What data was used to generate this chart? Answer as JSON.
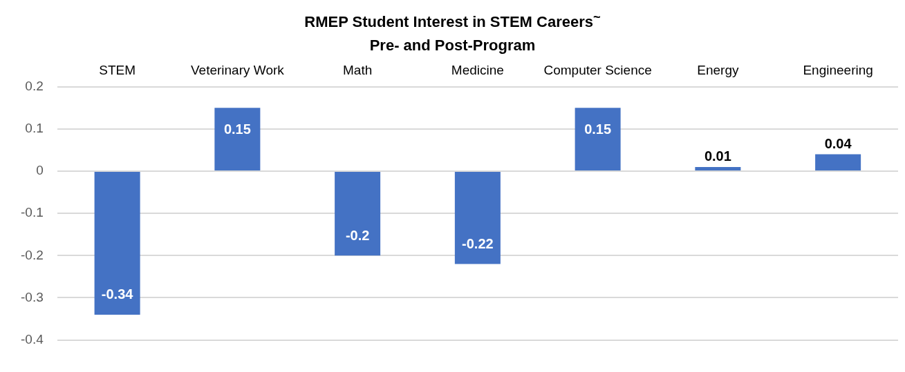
{
  "chart_data": {
    "type": "bar",
    "title": "RMEP Student Interest in STEM Careers$^{~}$",
    "subtitle": "Pre- and Post-Program",
    "categories": [
      "STEM",
      "Veterinary Work",
      "Math",
      "Medicine",
      "Computer Science",
      "Energy",
      "Engineering"
    ],
    "values": [
      -0.34,
      0.15,
      -0.2,
      -0.22,
      0.15,
      0.01,
      0.04
    ],
    "color": "#4472c4",
    "ylim": [
      -0.4,
      0.2
    ],
    "yticks": [
      -0.4,
      -0.3,
      -0.2,
      -0.1,
      0,
      0.1,
      0.2
    ],
    "grid": "y",
    "data_labels": true,
    "legend": false
  }
}
